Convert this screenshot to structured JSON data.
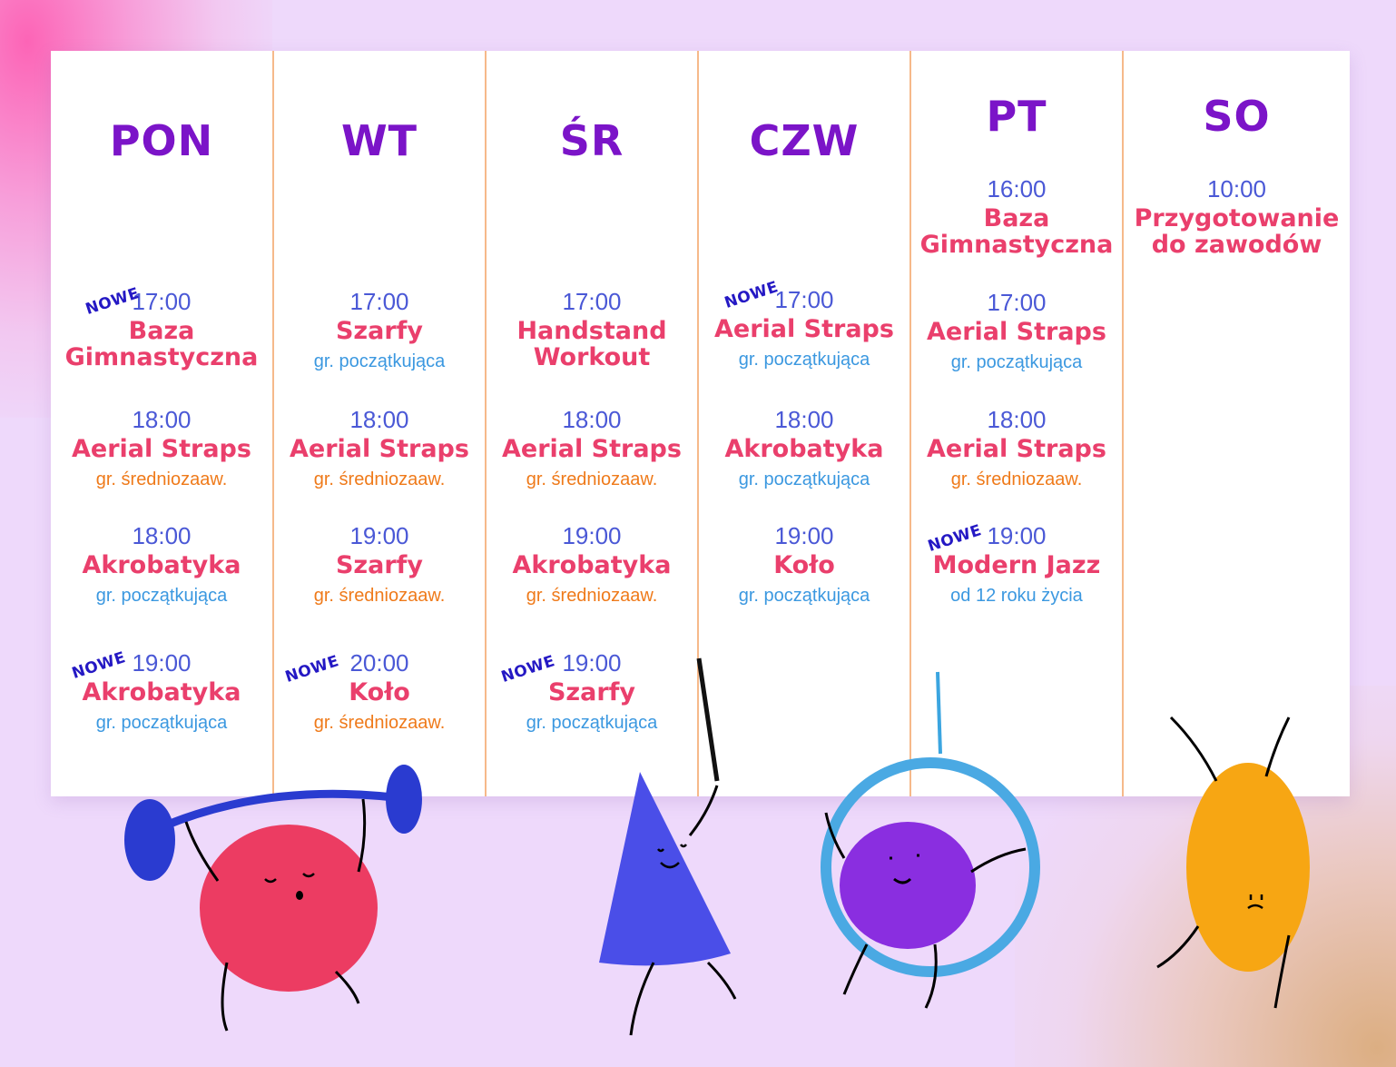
{
  "badge_label": "NOWE",
  "colors": {
    "day": "#7b14c8",
    "time": "#4a58d6",
    "class": "#ea3f6c",
    "beginner": "#3b98e0",
    "intermediate": "#ef7a1a",
    "badge": "#2418c4",
    "divider": "#f6b98a"
  },
  "days": [
    {
      "name": "PON",
      "slots": [
        {
          "time": "17:00",
          "class": "Baza\nGimnastyczna",
          "level": "",
          "new": true
        },
        {
          "time": "18:00",
          "class": "Aerial Straps",
          "level": "gr. średniozaaw.",
          "new": false
        },
        {
          "time": "18:00",
          "class": "Akrobatyka",
          "level": "gr. początkująca",
          "new": false
        },
        {
          "time": "19:00",
          "class": "Akrobatyka",
          "level": "gr. początkująca",
          "new": true
        }
      ]
    },
    {
      "name": "WT",
      "slots": [
        {
          "time": "17:00",
          "class": "Szarfy",
          "level": "gr. początkująca",
          "new": false
        },
        {
          "time": "18:00",
          "class": "Aerial Straps",
          "level": "gr. średniozaaw.",
          "new": false
        },
        {
          "time": "19:00",
          "class": "Szarfy",
          "level": "gr. średniozaaw.",
          "new": false
        },
        {
          "time": "20:00",
          "class": "Koło",
          "level": "gr. średniozaaw.",
          "new": true
        }
      ]
    },
    {
      "name": "ŚR",
      "slots": [
        {
          "time": "17:00",
          "class": "Handstand\nWorkout",
          "level": "",
          "new": false
        },
        {
          "time": "18:00",
          "class": "Aerial Straps",
          "level": "gr. średniozaaw.",
          "new": false
        },
        {
          "time": "19:00",
          "class": "Akrobatyka",
          "level": "gr. średniozaaw.",
          "new": false
        },
        {
          "time": "19:00",
          "class": "Szarfy",
          "level": "gr. początkująca",
          "new": true
        }
      ]
    },
    {
      "name": "CZW",
      "slots": [
        {
          "time": "17:00",
          "class": "Aerial Straps",
          "level": "gr. początkująca",
          "new": true
        },
        {
          "time": "18:00",
          "class": "Akrobatyka",
          "level": "gr. początkująca",
          "new": false
        },
        {
          "time": "19:00",
          "class": "Koło",
          "level": "gr. początkująca",
          "new": false
        }
      ]
    },
    {
      "name": "PT",
      "slots": [
        {
          "time": "16:00",
          "class": "Baza\nGimnastyczna",
          "level": "",
          "new": false
        },
        {
          "time": "17:00",
          "class": "Aerial Straps",
          "level": "gr. początkująca",
          "new": false
        },
        {
          "time": "18:00",
          "class": "Aerial Straps",
          "level": "gr. średniozaaw.",
          "new": false
        },
        {
          "time": "19:00",
          "class": "Modern Jazz",
          "level": "od 12 roku życia",
          "new": true
        }
      ]
    },
    {
      "name": "SO",
      "slots": [
        {
          "time": "10:00",
          "class": "Przygotowanie\ndo zawodów",
          "level": "",
          "new": false
        }
      ]
    }
  ]
}
